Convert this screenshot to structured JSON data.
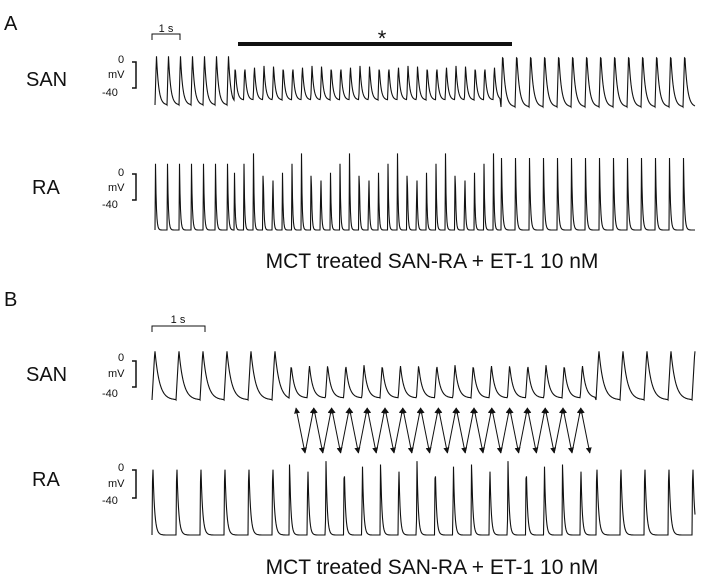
{
  "panels": [
    {
      "label": "A",
      "scale_bar": "1 s",
      "marker": "*",
      "rows": [
        {
          "name": "SAN",
          "zero": "0",
          "unit": "mV",
          "minus": "-40"
        },
        {
          "name": "RA",
          "zero": "0",
          "unit": "mV",
          "minus": "-40"
        }
      ],
      "caption": "MCT treated SAN-RA + ET-1 10 nM"
    },
    {
      "label": "B",
      "scale_bar": "1 s",
      "rows": [
        {
          "name": "SAN",
          "zero": "0",
          "unit": "mV",
          "minus": "-40"
        },
        {
          "name": "RA",
          "zero": "0",
          "unit": "mV",
          "minus": "-40"
        }
      ],
      "caption": "MCT treated SAN-RA + ET-1 10 nM"
    }
  ]
}
